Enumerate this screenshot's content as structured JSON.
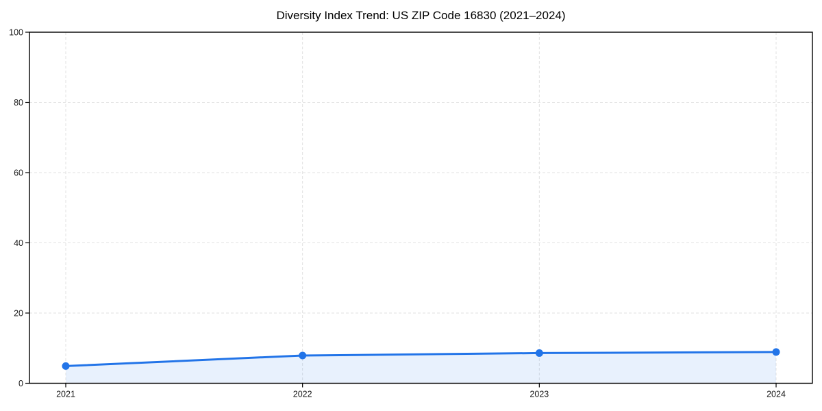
{
  "figure": {
    "title": "Diversity Index Trend: US ZIP Code 16830 (2021–2024)"
  },
  "chart_data": {
    "type": "line",
    "title": "Diversity Index Trend: US ZIP Code 16830 (2021–2024)",
    "x": [
      "2021",
      "2022",
      "2023",
      "2024"
    ],
    "series": [
      {
        "name": "Diversity Index",
        "values": [
          4.9,
          7.9,
          8.6,
          8.9
        ]
      }
    ],
    "xlabel": "",
    "ylabel": "",
    "ylim": [
      0,
      100
    ],
    "yticks": [
      0,
      20,
      40,
      60,
      80,
      100
    ],
    "grid": true,
    "grid_style": "dashed",
    "legend": "none",
    "colors": {
      "line": "#2274e8",
      "marker": "#2274e8",
      "area_fill": "rgba(34,116,232,0.10)",
      "gridline": "#e2e2e2",
      "spine": "#000000",
      "tick_label": "#1a1a1a"
    }
  }
}
